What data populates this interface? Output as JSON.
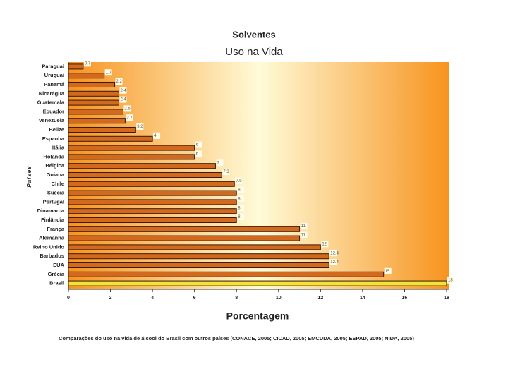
{
  "chart_data": {
    "type": "barh",
    "title": "Solventes",
    "subtitle": "Uso na Vida",
    "y_label": "Países",
    "x_label": "Porcentagem",
    "footnote": "Comparações do uso na vida de álcool do Brasil com outros países (CONACE, 2005; CICAD, 2005; EMCDDA, 2005; ESPAD, 2005; NIDA, 2005)",
    "categories": [
      "Paraguai",
      "Uruguai",
      "Panamá",
      "Nicarágua",
      "Guatemala",
      "Equador",
      "Venezuela",
      "Belize",
      "Espanha",
      "Itália",
      "Holanda",
      "Bélgica",
      "Guiana",
      "Chile",
      "Suécia",
      "Portugal",
      "Dinamarca",
      "Finlândia",
      "França",
      "Alemanha",
      "Reino Unido",
      "Barbados",
      "EUA",
      "Grécia",
      "Brasil"
    ],
    "values": [
      0.7,
      1.7,
      2.2,
      2.4,
      2.4,
      2.6,
      2.7,
      3.2,
      4,
      6,
      6,
      7,
      7.3,
      7.9,
      8,
      8,
      8,
      8,
      11,
      11,
      12,
      12.4,
      12.4,
      15,
      18
    ],
    "colors": [
      "#d2691e",
      "#d2691e",
      "#d2691e",
      "#d2691e",
      "#d2691e",
      "#d2691e",
      "#d2691e",
      "#d2691e",
      "#d2691e",
      "#d2691e",
      "#d2691e",
      "#d2691e",
      "#d2691e",
      "#d2691e",
      "#d2691e",
      "#d2691e",
      "#d2691e",
      "#d2691e",
      "#d2691e",
      "#d2691e",
      "#d2691e",
      "#d2691e",
      "#d2691e",
      "#d2691e",
      "#f2e23a"
    ],
    "xlim": [
      0,
      18
    ],
    "xticks": [
      0,
      2,
      4,
      6,
      8,
      10,
      12,
      14,
      16,
      18
    ]
  }
}
